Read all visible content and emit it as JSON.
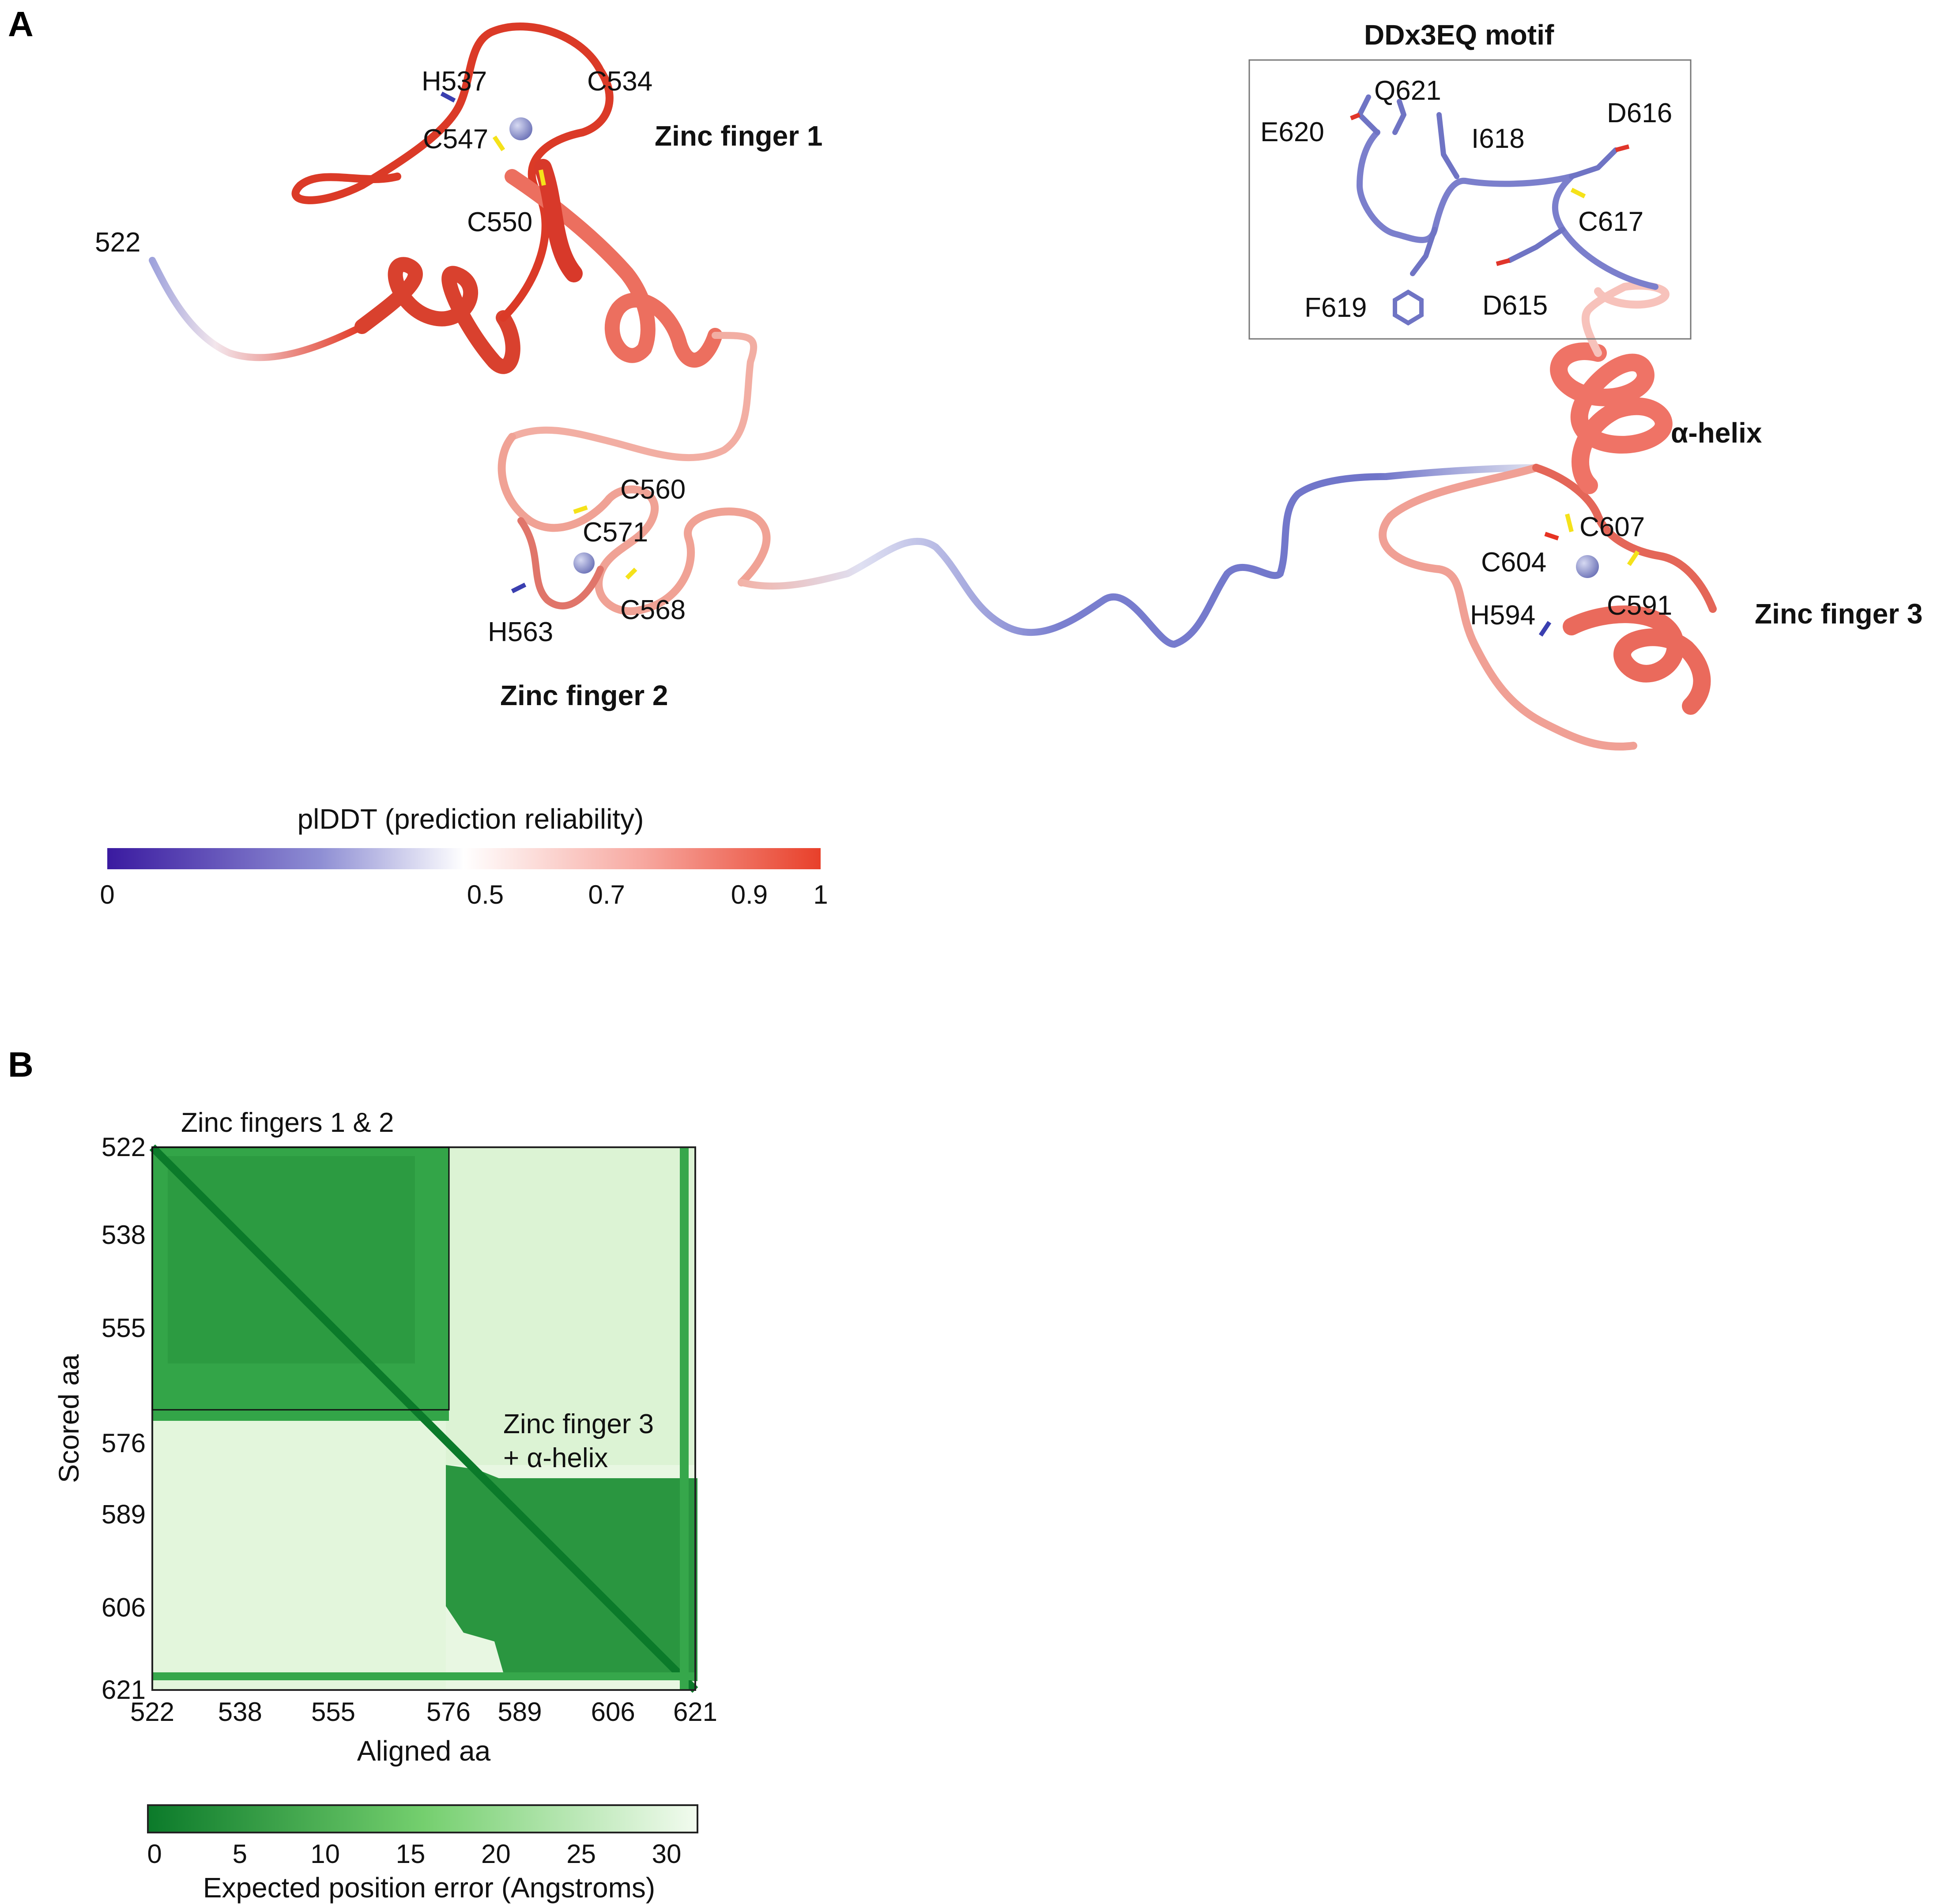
{
  "panel_a": {
    "letter": "A",
    "terminus_label": "522",
    "motif_title": "DDx3EQ motif",
    "zinc_finger_1": {
      "title": "Zinc finger 1",
      "residues": [
        "H537",
        "C534",
        "C547",
        "C550"
      ]
    },
    "zinc_finger_2": {
      "title": "Zinc finger 2",
      "residues": [
        "C560",
        "C571",
        "C568",
        "H563"
      ]
    },
    "zinc_finger_3": {
      "title": "Zinc finger 3",
      "residues": [
        "C607",
        "C604",
        "C591",
        "H594"
      ]
    },
    "helix_label": "α-helix",
    "motif_residues": [
      "Q621",
      "E620",
      "I618",
      "D616",
      "C617",
      "F619",
      "D615"
    ],
    "colorbar": {
      "title": "plDDT (prediction reliability)",
      "ticks": [
        "0",
        "0.5",
        "0.7",
        "0.9",
        "1"
      ],
      "tick_values": [
        0,
        0.5,
        0.7,
        0.9,
        1
      ],
      "colors": [
        "#3a1aa0",
        "#8f8fd4",
        "#ffffff",
        "#f7a8a0",
        "#e8402a"
      ]
    }
  },
  "panel_b": {
    "letter": "B",
    "box1_label": "Zinc fingers 1 & 2",
    "box2_label_line1": "Zinc finger 3",
    "box2_label_line2": "+ α-helix",
    "colorbar": {
      "title": "Expected position error (Angstroms)",
      "ticks": [
        "0",
        "5",
        "10",
        "15",
        "20",
        "25",
        "30"
      ],
      "colors": [
        "#0b7a2a",
        "#f2fbef"
      ]
    }
  },
  "chart_data": {
    "type": "heatmap",
    "xlabel": "Aligned aa",
    "ylabel": "Scored aa",
    "x_ticks": [
      "522",
      "538",
      "555",
      "576",
      "589",
      "606",
      "621"
    ],
    "y_ticks": [
      "522",
      "538",
      "555",
      "576",
      "589",
      "606",
      "621"
    ],
    "x_tick_values": [
      522,
      538,
      555,
      576,
      589,
      606,
      621
    ],
    "y_tick_values": [
      522,
      538,
      555,
      576,
      589,
      606,
      621
    ],
    "range": [
      522,
      621
    ],
    "colorbar_range": [
      0,
      30
    ],
    "blocks": [
      {
        "name": "Zinc fingers 1 & 2",
        "from": 522,
        "to": 576,
        "mean_error": 3
      },
      {
        "name": "Zinc finger 3 + α-helix",
        "from": 584,
        "to": 619,
        "mean_error": 2.5
      }
    ],
    "off_block_error": 28
  }
}
